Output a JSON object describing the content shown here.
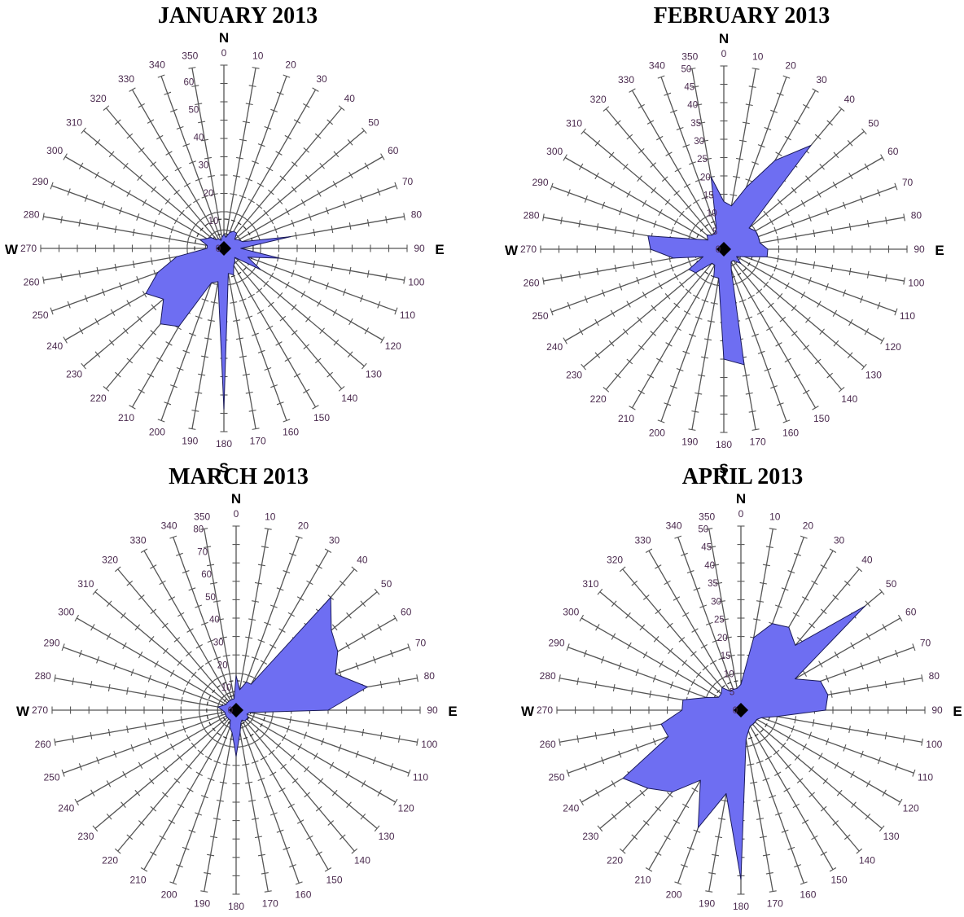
{
  "chart_data": [
    {
      "type": "radar",
      "title": "JANUARY 2013",
      "compass": {
        "north": "N",
        "east": "E",
        "south": "S",
        "west": "W"
      },
      "directions": [
        0,
        10,
        20,
        30,
        40,
        50,
        60,
        70,
        80,
        90,
        100,
        110,
        120,
        130,
        140,
        150,
        160,
        170,
        180,
        190,
        200,
        210,
        220,
        230,
        240,
        250,
        260,
        270,
        280,
        290,
        300,
        310,
        320,
        330,
        340,
        350
      ],
      "scale_ticks": [
        0,
        10,
        20,
        30,
        40,
        50,
        60
      ],
      "rmax": 65,
      "values": [
        5,
        4,
        6,
        7,
        7,
        5,
        6,
        7,
        24,
        6,
        20,
        9,
        15,
        5,
        6,
        7,
        10,
        9,
        57,
        12,
        13,
        32,
        35,
        28,
        32,
        25,
        17,
        6,
        6,
        9,
        7,
        6,
        4,
        4,
        3,
        4
      ]
    },
    {
      "type": "radar",
      "title": "FEBRUARY 2013",
      "compass": {
        "north": "N",
        "east": "E",
        "south": "S",
        "west": "W"
      },
      "directions": [
        0,
        10,
        20,
        30,
        40,
        50,
        60,
        70,
        80,
        90,
        100,
        110,
        120,
        130,
        140,
        150,
        160,
        170,
        180,
        190,
        200,
        210,
        220,
        230,
        240,
        250,
        260,
        270,
        280,
        290,
        300,
        310,
        320,
        330,
        340,
        350
      ],
      "scale_ticks": [
        0,
        5,
        10,
        15,
        20,
        25,
        30,
        35,
        40,
        45,
        50
      ],
      "rmax": 50,
      "values": [
        13,
        12,
        18,
        28,
        37,
        9,
        10,
        10,
        10,
        12,
        12,
        6,
        4,
        6,
        4,
        4,
        6,
        32,
        30,
        8,
        8,
        5,
        5,
        10,
        11,
        6,
        14,
        20,
        21,
        8,
        5,
        6,
        5,
        5,
        6,
        20
      ]
    },
    {
      "type": "radar",
      "title": "MARCH 2013",
      "compass": {
        "north": "N",
        "east": "E",
        "south": "S",
        "west": "W"
      },
      "directions": [
        0,
        10,
        20,
        30,
        40,
        50,
        60,
        70,
        80,
        90,
        100,
        110,
        120,
        130,
        140,
        150,
        160,
        170,
        180,
        190,
        200,
        210,
        220,
        230,
        240,
        250,
        260,
        270,
        280,
        290,
        300,
        310,
        320,
        330,
        340,
        350
      ],
      "scale_ticks": [
        0,
        10,
        20,
        30,
        40,
        50,
        60,
        70,
        80
      ],
      "rmax": 80,
      "values": [
        15,
        9,
        13,
        13,
        64,
        54,
        51,
        46,
        58,
        40,
        6,
        5,
        6,
        6,
        6,
        5,
        6,
        10,
        20,
        10,
        8,
        5,
        5,
        5,
        5,
        5,
        5,
        6,
        8,
        6,
        5,
        5,
        5,
        5,
        5,
        5
      ]
    },
    {
      "type": "radar",
      "title": "APRIL 2013",
      "compass": {
        "north": "N",
        "east": "E",
        "south": "S",
        "west": "W"
      },
      "directions": [
        0,
        10,
        20,
        30,
        40,
        50,
        60,
        70,
        80,
        90,
        100,
        110,
        120,
        130,
        140,
        150,
        160,
        170,
        180,
        190,
        200,
        210,
        220,
        230,
        240,
        250,
        260,
        270,
        280,
        290,
        300,
        310,
        320,
        330,
        340,
        350
      ],
      "scale_ticks": [
        0,
        5,
        10,
        15,
        20,
        25,
        30,
        35,
        40,
        45,
        50
      ],
      "rmax": 50,
      "values": [
        7,
        20,
        25,
        26,
        23,
        44,
        17,
        23,
        24,
        23,
        10,
        6,
        5,
        5,
        5,
        5,
        6,
        8,
        46,
        23,
        34,
        22,
        29,
        33,
        37,
        21,
        22,
        16,
        16,
        10,
        7,
        7,
        8,
        6,
        6,
        6
      ]
    }
  ]
}
